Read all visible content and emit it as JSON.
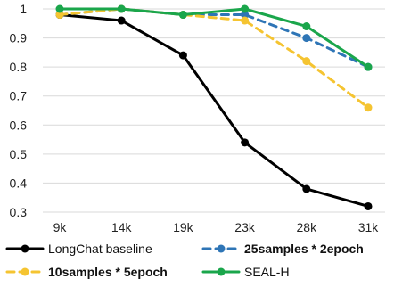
{
  "chart_data": {
    "type": "line",
    "categories": [
      "9k",
      "14k",
      "19k",
      "23k",
      "28k",
      "31k"
    ],
    "ylim": [
      0.3,
      1.0
    ],
    "yticks": [
      "0.3",
      "0.4",
      "0.5",
      "0.6",
      "0.7",
      "0.8",
      "0.9",
      "1"
    ],
    "grid": "horizontal",
    "legend_position": "bottom",
    "series": [
      {
        "name": "LongChat baseline",
        "values": [
          0.98,
          0.96,
          0.84,
          0.54,
          0.38,
          0.32
        ],
        "color": "#000000",
        "dash": "solid",
        "bold": false
      },
      {
        "name": "25samples * 2epoch",
        "values": [
          0.98,
          1.0,
          0.98,
          0.98,
          0.9,
          0.8
        ],
        "color": "#2E75B6",
        "dash": "dashed",
        "bold": true
      },
      {
        "name": "10samples * 5epoch",
        "values": [
          0.98,
          1.0,
          0.98,
          0.96,
          0.82,
          0.66
        ],
        "color": "#F5C431",
        "dash": "dashed",
        "bold": true
      },
      {
        "name": "SEAL-H",
        "values": [
          1.0,
          1.0,
          0.98,
          1.0,
          0.94,
          0.8
        ],
        "color": "#1AA64B",
        "dash": "solid",
        "bold": false
      }
    ]
  }
}
